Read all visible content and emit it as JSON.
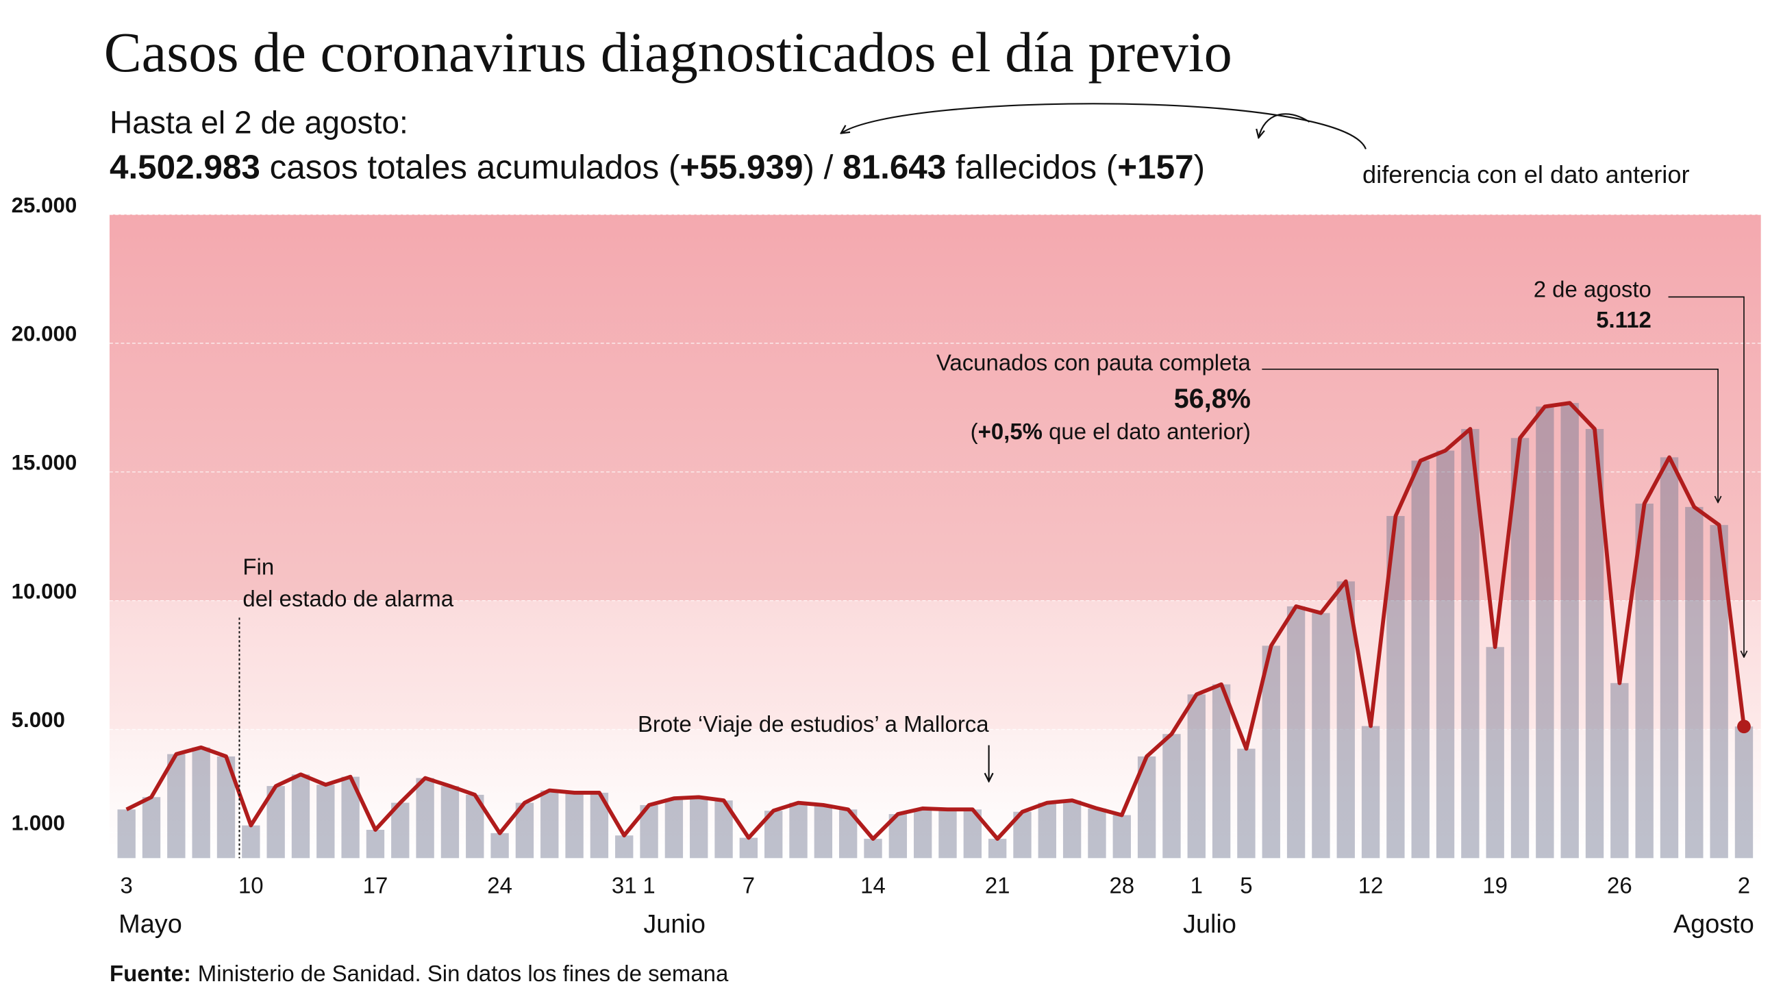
{
  "chart_data": {
    "type": "bar",
    "title": "Casos de coronavirus diagnosticados el día previo",
    "subtitle": "Hasta el 2 de agosto:",
    "summary": [
      {
        "text": "4.502.983",
        "bold": true
      },
      {
        "text": " casos totales acumulados (",
        "bold": false
      },
      {
        "text": "+55.939",
        "bold": true
      },
      {
        "text": ") / ",
        "bold": false
      },
      {
        "text": "81.643",
        "bold": true
      },
      {
        "text": " fallecidos (",
        "bold": false
      },
      {
        "text": "+157",
        "bold": true
      },
      {
        "text": ")",
        "bold": false
      }
    ],
    "difference_note": "diferencia con el dato anterior",
    "categories": [
      "3",
      null,
      null,
      null,
      null,
      "10",
      null,
      null,
      null,
      null,
      "17",
      null,
      null,
      null,
      null,
      "24",
      null,
      null,
      null,
      null,
      "31",
      "1",
      null,
      null,
      null,
      "7",
      null,
      null,
      null,
      null,
      "14",
      null,
      null,
      null,
      null,
      "21",
      null,
      null,
      null,
      null,
      "28",
      null,
      null,
      "1",
      null,
      "5",
      null,
      null,
      null,
      null,
      "12",
      null,
      null,
      null,
      null,
      "19",
      null,
      null,
      null,
      null,
      "26",
      null,
      null,
      null,
      null,
      "2"
    ],
    "months": [
      "Mayo",
      "Junio",
      "Julio",
      "Agosto"
    ],
    "values": [
      1890,
      2370,
      4040,
      4300,
      3950,
      1270,
      2800,
      3250,
      2850,
      3160,
      1100,
      2150,
      3110,
      2800,
      2460,
      970,
      2150,
      2630,
      2540,
      2540,
      880,
      2060,
      2320,
      2370,
      2240,
      790,
      1840,
      2150,
      2060,
      1890,
      750,
      1710,
      1930,
      1890,
      1890,
      750,
      1800,
      2150,
      2240,
      1930,
      1670,
      3950,
      4820,
      6360,
      6750,
      4250,
      8250,
      9780,
      9520,
      10750,
      5130,
      13290,
      15440,
      15830,
      16670,
      8200,
      16320,
      17540,
      17680,
      16670,
      6800,
      13770,
      15570,
      13640,
      12940,
      5112
    ],
    "value_labels": [
      null,
      null,
      null,
      null,
      null,
      null,
      null,
      null,
      null,
      null,
      null,
      null,
      null,
      null,
      null,
      null,
      null,
      null,
      null,
      null,
      null,
      null,
      null,
      null,
      null,
      null,
      null,
      null,
      null,
      null,
      null,
      null,
      null,
      null,
      null,
      null,
      null,
      null,
      null,
      null,
      null,
      null,
      null,
      null,
      null,
      null,
      null,
      null,
      null,
      null,
      null,
      null,
      null,
      null,
      null,
      null,
      null,
      null,
      null,
      null,
      null,
      null,
      null,
      null,
      null,
      "5.112"
    ],
    "bar_color": "#6f7590",
    "line_color": "#b01c1c",
    "ylim": [
      0,
      25000
    ],
    "yticks": [
      {
        "value": 1000,
        "label": "1.000"
      },
      {
        "value": 5000,
        "label": "5.000"
      },
      {
        "value": 10000,
        "label": "10.000"
      },
      {
        "value": 15000,
        "label": "15.000"
      },
      {
        "value": 20000,
        "label": "20.000"
      },
      {
        "value": 25000,
        "label": "25.000"
      }
    ],
    "annotations": {
      "alarma": [
        "Fin",
        "del estado de alarma"
      ],
      "brote": "Brote ‘Viaje de estudios’ a Mallorca",
      "vacunados_title": "Vacunados con pauta completa",
      "vacunados_value": "56,8%",
      "vacunados_change": [
        {
          "text": "(",
          "bold": false
        },
        {
          "text": "+0,5%",
          "bold": true
        },
        {
          "text": " que el dato anterior)",
          "bold": false
        }
      ],
      "last_date": "2 de agosto"
    },
    "source_label": "Fuente:",
    "source": "Ministerio de Sanidad. Sin datos los fines de semana"
  }
}
